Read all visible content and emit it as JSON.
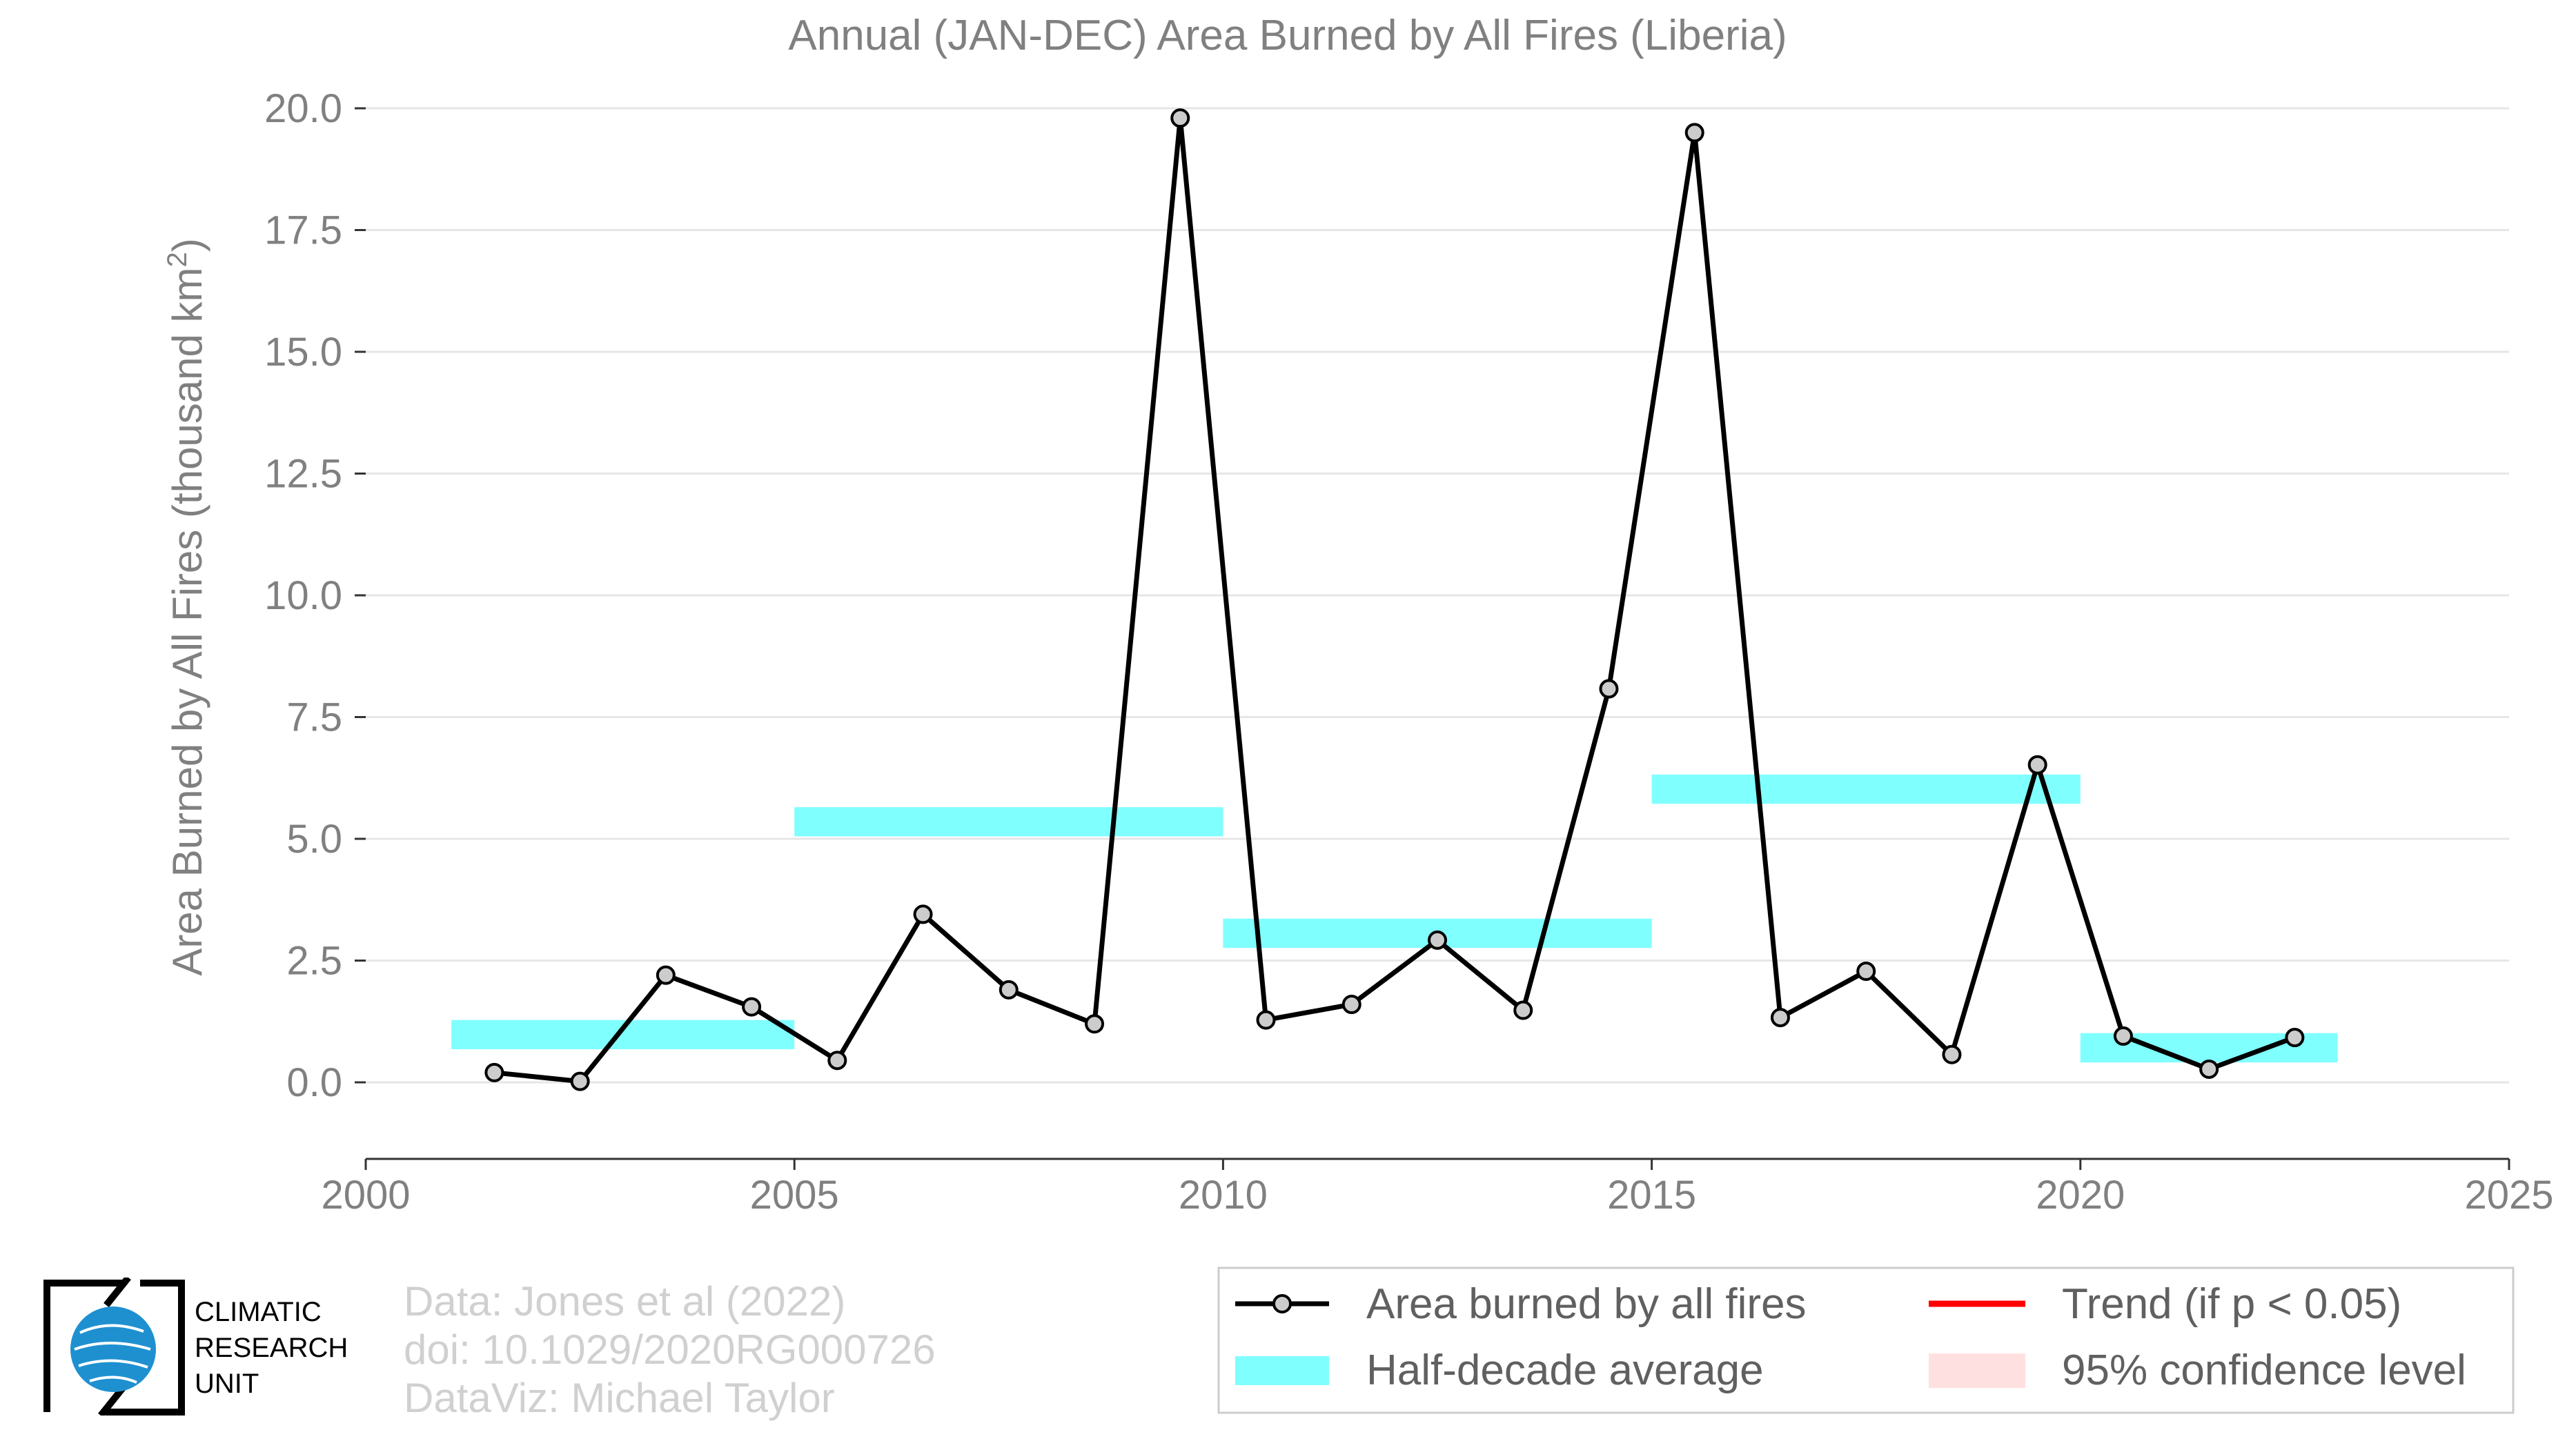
{
  "chart_data": {
    "type": "line",
    "title": "Annual (JAN-DEC) Area Burned by All Fires (Liberia)",
    "ylabel": "Area Burned by All Fires (thousand km",
    "ylabel_sup": "2",
    "ylabel_close": ")",
    "xlim": [
      2000,
      2025
    ],
    "ylim": [
      -1.5,
      20.5
    ],
    "x_ticks": [
      2000,
      2005,
      2010,
      2015,
      2020,
      2025
    ],
    "y_ticks": [
      0.0,
      2.5,
      5.0,
      7.5,
      10.0,
      12.5,
      15.0,
      17.5,
      20.0
    ],
    "y_tick_labels": [
      "0.0",
      "2.5",
      "5.0",
      "7.5",
      "10.0",
      "12.5",
      "15.0",
      "17.5",
      "20.0"
    ],
    "grid": "horizontal",
    "series": [
      {
        "name": "Area burned by all fires",
        "color": "#000000",
        "marker_fill": "#cccccc",
        "x": [
          2001.5,
          2002.5,
          2003.5,
          2004.5,
          2005.5,
          2006.5,
          2007.5,
          2008.5,
          2009.5,
          2010.5,
          2011.5,
          2012.5,
          2013.5,
          2014.5,
          2015.5,
          2016.5,
          2017.5,
          2018.5,
          2019.5,
          2020.5,
          2021.5,
          2022.5
        ],
        "y": [
          0.2,
          0.02,
          2.2,
          1.55,
          0.45,
          3.45,
          1.9,
          1.2,
          19.8,
          1.28,
          1.6,
          2.92,
          1.48,
          8.08,
          19.5,
          1.33,
          2.28,
          0.57,
          6.52,
          0.95,
          0.27,
          0.92
        ]
      }
    ],
    "half_decade_averages": {
      "name": "Half-decade average",
      "color": "#80ffff",
      "segments": [
        {
          "x_start": 2001,
          "x_end": 2005,
          "value": 0.98
        },
        {
          "x_start": 2005,
          "x_end": 2010,
          "value": 5.35
        },
        {
          "x_start": 2010,
          "x_end": 2015,
          "value": 3.06
        },
        {
          "x_start": 2015,
          "x_end": 2020,
          "value": 6.02
        },
        {
          "x_start": 2020,
          "x_end": 2023,
          "value": 0.71
        }
      ]
    },
    "legend": {
      "position": "bottom-right",
      "items": [
        {
          "label": "Area burned by all fires",
          "kind": "line-marker",
          "color": "#000000"
        },
        {
          "label": "Trend (if p < 0.05)",
          "kind": "line",
          "color": "#ff0000"
        },
        {
          "label": "Half-decade average",
          "kind": "band",
          "color": "#80ffff"
        },
        {
          "label": "95% confidence level",
          "kind": "band",
          "color": "#ffe0e0"
        }
      ]
    }
  },
  "credits": {
    "line1": "Data: Jones et al (2022)",
    "line2": "doi: 10.1029/2020RG000726",
    "line3": "DataViz: Michael Taylor"
  },
  "logo": {
    "line1": "CLIMATIC",
    "line2": "RESEARCH",
    "line3": "UNIT",
    "globe_color": "#1e90d0"
  }
}
